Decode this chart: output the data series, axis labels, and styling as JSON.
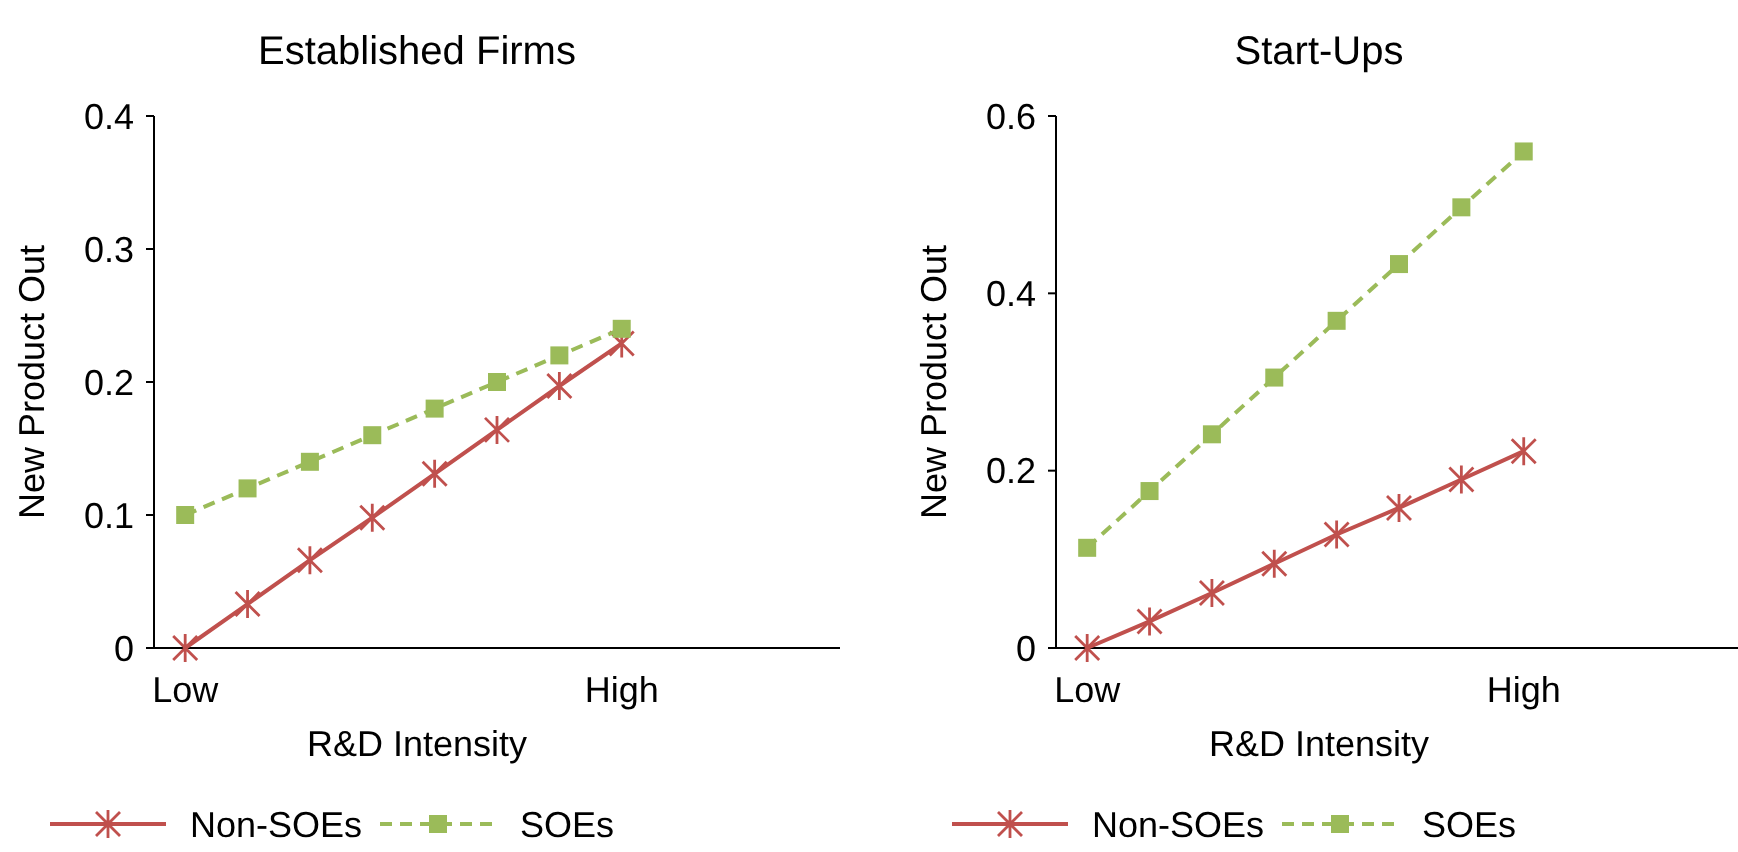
{
  "chart_data": [
    {
      "type": "line",
      "title": "Established Firms",
      "xlabel": "R&D Intensity",
      "ylabel": "New Product Out",
      "categories": [
        "Low",
        null,
        null,
        null,
        null,
        null,
        null,
        "High",
        null,
        null,
        null
      ],
      "ylim": [
        0,
        0.4
      ],
      "yticks": [
        0,
        0.1,
        0.2,
        0.3,
        0.4
      ],
      "grid": false,
      "legend": "bottom",
      "series": [
        {
          "name": "Non-SOEs",
          "color": "#c0504d",
          "marker": "cross",
          "line_style": "solid",
          "values": [
            0,
            0.033,
            0.066,
            0.098,
            0.131,
            0.164,
            0.197,
            0.229,
            null,
            null,
            null
          ]
        },
        {
          "name": "SOEs",
          "color": "#9bbb59",
          "marker": "square",
          "line_style": "dashed",
          "values": [
            0.1,
            0.12,
            0.14,
            0.16,
            0.18,
            0.2,
            0.22,
            0.24,
            null,
            null,
            null
          ]
        }
      ]
    },
    {
      "type": "line",
      "title": "Start-Ups",
      "xlabel": "R&D Intensity",
      "ylabel": "New Product Out",
      "categories": [
        "Low",
        null,
        null,
        null,
        null,
        null,
        null,
        "High",
        null,
        null,
        null
      ],
      "ylim": [
        0,
        0.6
      ],
      "yticks": [
        0,
        0.2,
        0.4,
        0.6
      ],
      "grid": false,
      "legend": "bottom",
      "series": [
        {
          "name": "Non-SOEs",
          "color": "#c0504d",
          "marker": "cross",
          "line_style": "solid",
          "values": [
            0,
            0.03,
            0.062,
            0.095,
            0.128,
            0.158,
            0.19,
            0.222,
            null,
            null,
            null
          ]
        },
        {
          "name": "SOEs",
          "color": "#9bbb59",
          "marker": "square",
          "line_style": "dashed",
          "values": [
            0.113,
            0.177,
            0.241,
            0.305,
            0.369,
            0.433,
            0.497,
            0.56,
            null,
            null,
            null
          ]
        }
      ]
    }
  ]
}
